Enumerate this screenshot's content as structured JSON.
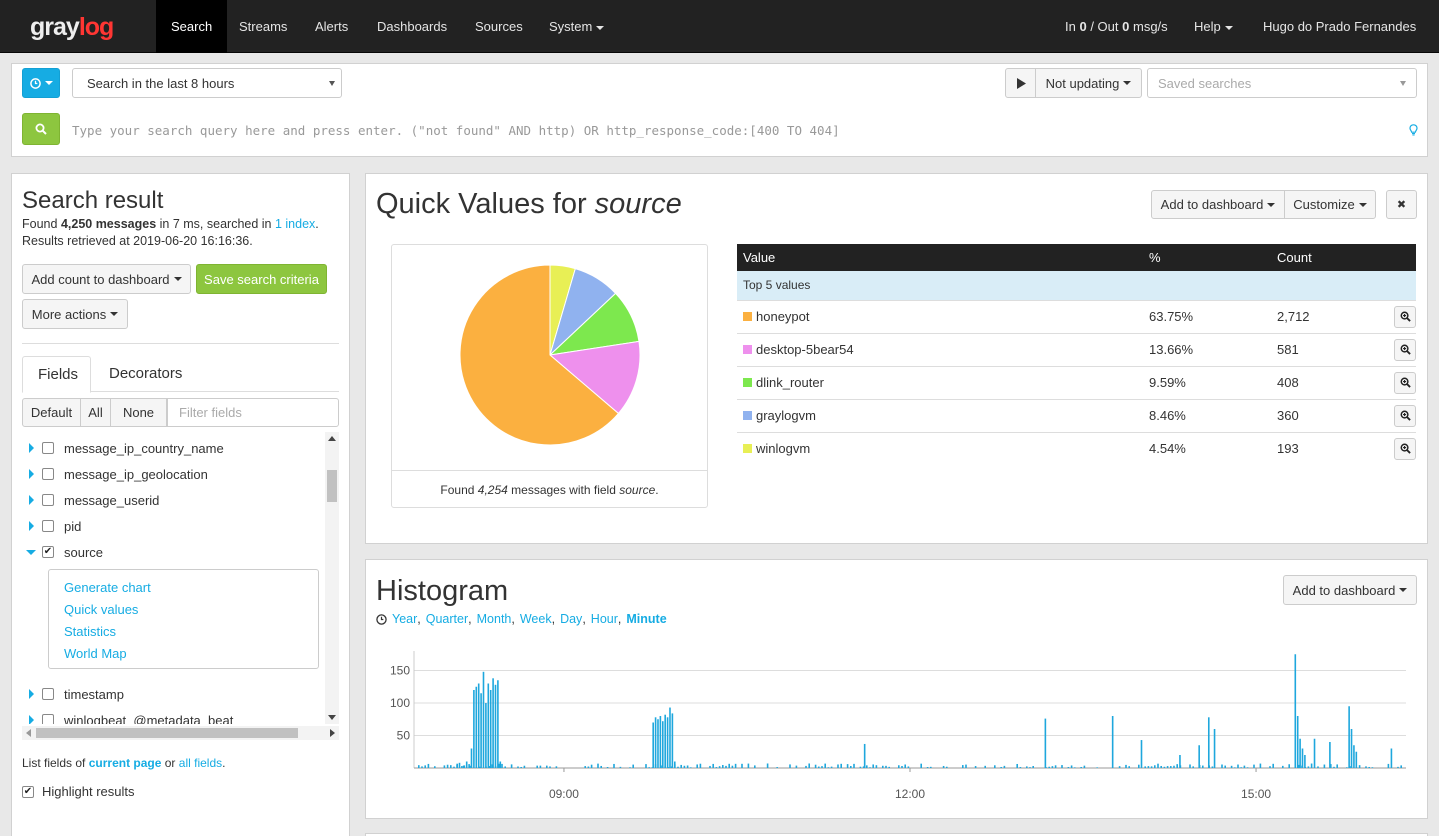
{
  "nav": {
    "logo_gray1": "gray",
    "logo_red": "log",
    "items": [
      "Search",
      "Streams",
      "Alerts",
      "Dashboards",
      "Sources",
      "System"
    ],
    "throughput_in_label": "In",
    "throughput_in": "0",
    "throughput_out_label": "/ Out",
    "throughput_out": "0",
    "throughput_unit": "msg/s",
    "help": "Help",
    "user": "Hugo do Prado Fernandes"
  },
  "search": {
    "time_range": "Search in the last 8 hours",
    "refresh": "Not updating",
    "saved_placeholder": "Saved searches",
    "query_placeholder": "Type your search query here and press enter. (\"not found\" AND http) OR http_response_code:[400 TO 404]"
  },
  "result": {
    "title": "Search result",
    "found_prefix": "Found",
    "found_count": "4,250 messages",
    "found_middle": "in 7 ms, searched in",
    "index_link": "1 index",
    "found_suffix": ".",
    "retrieved": "Results retrieved at 2019-06-20 16:16:36.",
    "add_count": "Add count to dashboard",
    "save_search": "Save search criteria",
    "more_actions": "More actions",
    "tab_fields": "Fields",
    "tab_decorators": "Decorators",
    "filter_default": "Default",
    "filter_all": "All",
    "filter_none": "None",
    "filter_placeholder": "Filter fields",
    "fields": [
      "message_ip_country_name",
      "message_ip_geolocation",
      "message_userid",
      "pid",
      "source",
      "timestamp",
      "winlogbeat_@metadata_beat"
    ],
    "source_actions": [
      "Generate chart",
      "Quick values",
      "Statistics",
      "World Map"
    ],
    "list_prefix": "List fields of",
    "current_page": "current page",
    "list_or": "or",
    "all_fields": "all fields",
    "list_suffix": ".",
    "highlight": "Highlight results"
  },
  "quickvalues": {
    "title_prefix": "Quick Values for",
    "title_field": "source",
    "add_dashboard": "Add to dashboard",
    "customize": "Customize",
    "close": "✖",
    "found_prefix": "Found",
    "found_count": "4,254",
    "found_middle": "messages with field",
    "found_field": "source",
    "found_suffix": ".",
    "headers": [
      "Value",
      "%",
      "Count"
    ],
    "group_label": "Top 5 values",
    "rows": [
      {
        "value": "honeypot",
        "pct": "63.75%",
        "count": "2,712",
        "color": "#fbb040"
      },
      {
        "value": "desktop-5bear54",
        "pct": "13.66%",
        "count": "581",
        "color": "#ee90ed"
      },
      {
        "value": "dlink_router",
        "pct": "9.59%",
        "count": "408",
        "color": "#7de84e"
      },
      {
        "value": "graylogvm",
        "pct": "8.46%",
        "count": "360",
        "color": "#90b2ef"
      },
      {
        "value": "winlogvm",
        "pct": "4.54%",
        "count": "193",
        "color": "#e8ef55"
      }
    ]
  },
  "histogram": {
    "title": "Histogram",
    "add_dashboard": "Add to dashboard",
    "resolutions": [
      "Year",
      "Quarter",
      "Month",
      "Week",
      "Day",
      "Hour",
      "Minute"
    ],
    "active_resolution": "Minute"
  },
  "chart_data": {
    "type": "bar",
    "title": "",
    "xlabel": "",
    "ylabel": "",
    "ylim": [
      0,
      180
    ],
    "yticks": [
      50,
      100,
      150
    ],
    "xticks": [
      "09:00",
      "12:00",
      "15:00"
    ],
    "color": "#1ea7dd",
    "bursts": [
      {
        "label": "08:00–08:30",
        "values": [
          5,
          8,
          3,
          4,
          10,
          6,
          30,
          120,
          125,
          130,
          115,
          148,
          100,
          130,
          120,
          138,
          128,
          135,
          10
        ]
      },
      {
        "label": "09:45–09:55",
        "values": [
          70,
          78,
          75,
          80,
          72,
          82,
          78,
          93,
          84,
          10
        ]
      },
      {
        "label": "15:20–15:25",
        "values": [
          175,
          80,
          45,
          30,
          20
        ]
      },
      {
        "label": "15:50",
        "values": [
          95,
          60,
          35,
          25
        ]
      }
    ],
    "spikes": [
      {
        "time": "11:36",
        "value": 37
      },
      {
        "time": "13:10",
        "value": 76
      },
      {
        "time": "13:45",
        "value": 80
      },
      {
        "time": "14:00",
        "value": 43
      },
      {
        "time": "14:20",
        "value": 20
      },
      {
        "time": "14:30",
        "value": 35
      },
      {
        "time": "14:35",
        "value": 78
      },
      {
        "time": "14:38",
        "value": 60
      },
      {
        "time": "15:30",
        "value": 45
      },
      {
        "time": "15:38",
        "value": 40
      },
      {
        "time": "16:10",
        "value": 30
      }
    ]
  }
}
